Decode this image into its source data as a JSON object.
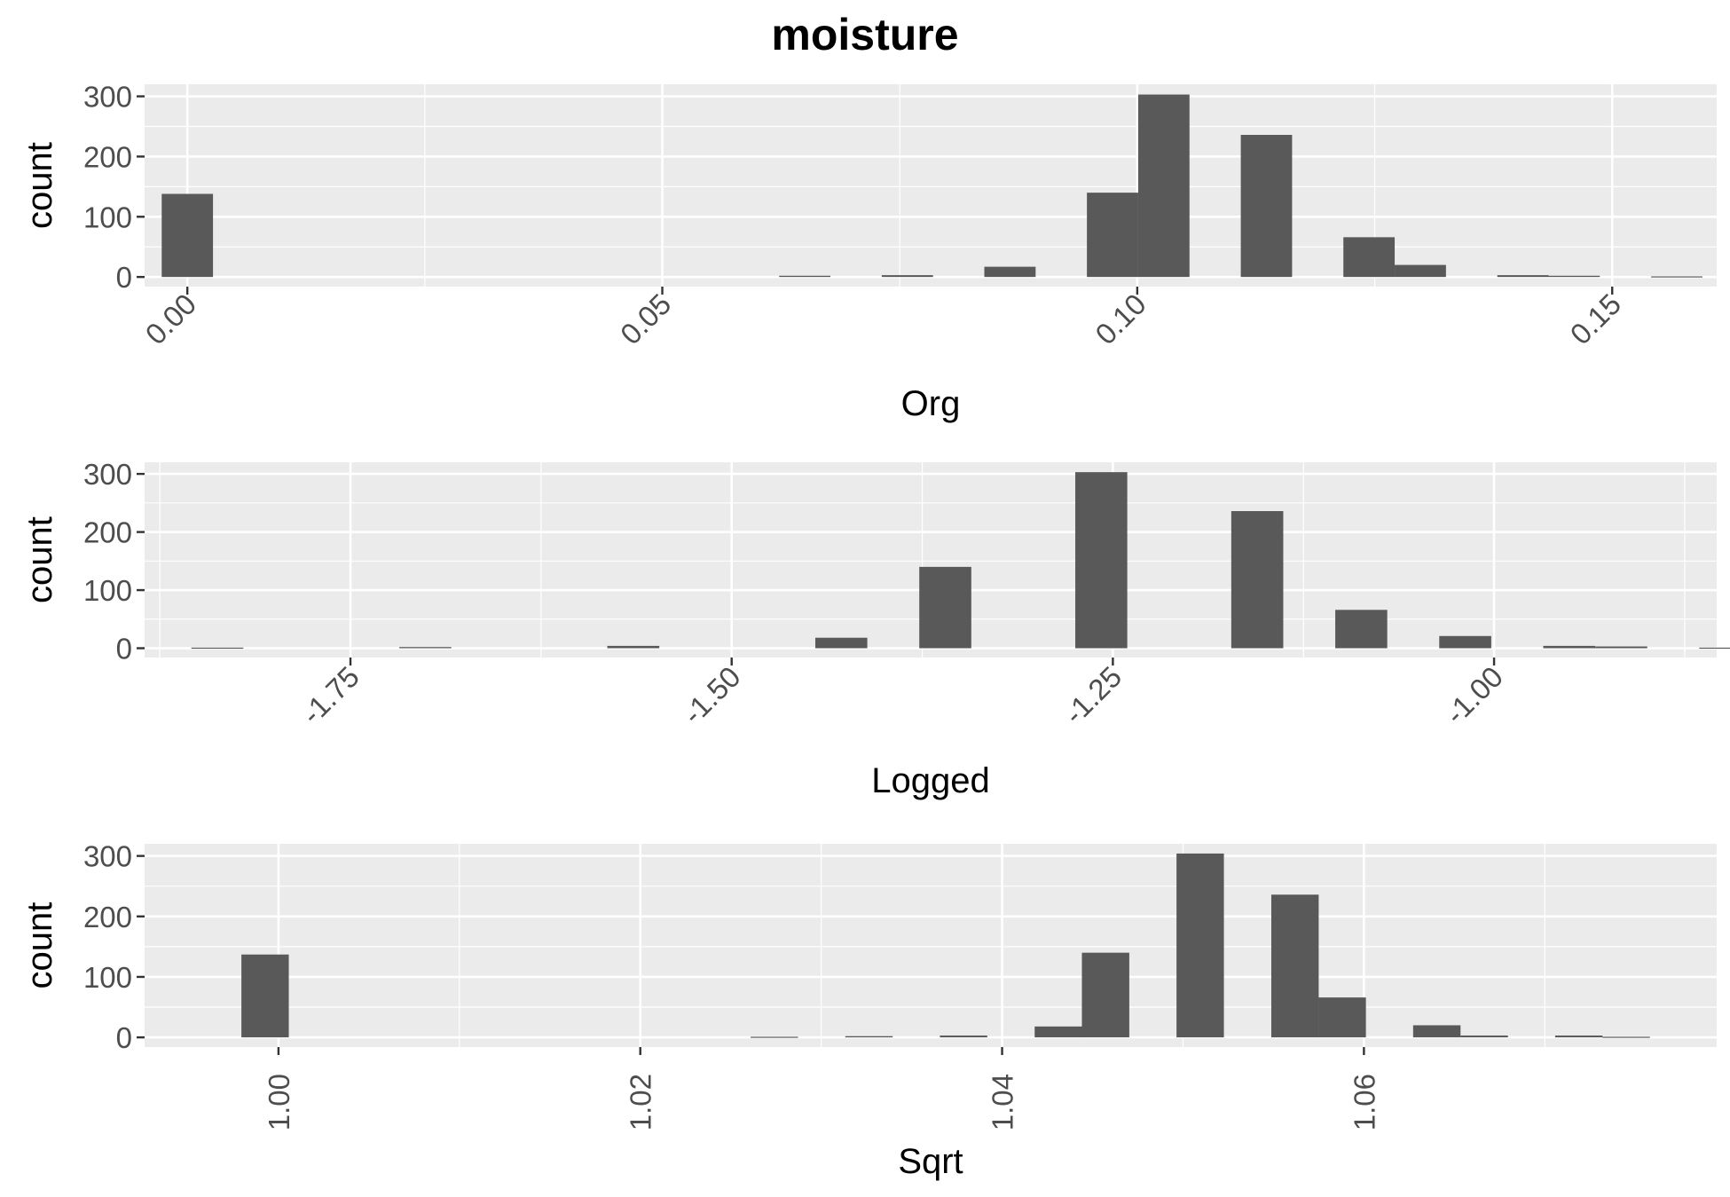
{
  "figure": {
    "title": "moisture"
  },
  "chart_data": [
    {
      "type": "bar",
      "xlabel": "Org",
      "ylabel": "count",
      "xlim": [
        -0.0045,
        0.161
      ],
      "ylim": [
        -16,
        320
      ],
      "x_ticks": [
        0.0,
        0.05,
        0.1,
        0.15
      ],
      "x_tick_labels": [
        "0.00",
        "0.05",
        "0.10",
        "0.15"
      ],
      "x_tick_rotation": -45,
      "y_ticks": [
        0,
        100,
        200,
        300
      ],
      "y_tick_labels": [
        "0",
        "100",
        "200",
        "300"
      ],
      "bin_width": 0.0054,
      "bins": [
        {
          "x": 0.0,
          "count": 138
        },
        {
          "x": 0.065,
          "count": 2
        },
        {
          "x": 0.0758,
          "count": 3
        },
        {
          "x": 0.0866,
          "count": 17
        },
        {
          "x": 0.0974,
          "count": 140
        },
        {
          "x": 0.1028,
          "count": 303
        },
        {
          "x": 0.1136,
          "count": 236
        },
        {
          "x": 0.1244,
          "count": 66
        },
        {
          "x": 0.1298,
          "count": 20
        },
        {
          "x": 0.1406,
          "count": 3
        },
        {
          "x": 0.146,
          "count": 2
        },
        {
          "x": 0.1568,
          "count": 1
        }
      ],
      "grid": true
    },
    {
      "type": "bar",
      "xlabel": "Logged",
      "ylabel": "count",
      "xlim": [
        -1.885,
        -0.854
      ],
      "ylim": [
        -16,
        320
      ],
      "x_ticks": [
        -1.75,
        -1.5,
        -1.25,
        -1.0
      ],
      "x_tick_labels": [
        "-1.75",
        "-1.50",
        "-1.25",
        "-1.00"
      ],
      "x_tick_rotation": -45,
      "y_ticks": [
        0,
        100,
        200,
        300
      ],
      "y_tick_labels": [
        "0",
        "100",
        "200",
        "300"
      ],
      "bin_width": 0.0341,
      "bins": [
        {
          "x": -1.8373,
          "count": 1
        },
        {
          "x": -1.7009,
          "count": 2
        },
        {
          "x": -1.5645,
          "count": 4
        },
        {
          "x": -1.4281,
          "count": 18
        },
        {
          "x": -1.3599,
          "count": 140
        },
        {
          "x": -1.2576,
          "count": 303
        },
        {
          "x": -1.1553,
          "count": 236
        },
        {
          "x": -1.0871,
          "count": 66
        },
        {
          "x": -1.0189,
          "count": 21
        },
        {
          "x": -0.9507,
          "count": 4
        },
        {
          "x": -0.9166,
          "count": 3
        },
        {
          "x": -0.8484,
          "count": 1
        }
      ],
      "grid": true
    },
    {
      "type": "bar",
      "xlabel": "Sqrt",
      "ylabel": "count",
      "xlim": [
        0.9926,
        1.0795
      ],
      "ylim": [
        -16,
        320
      ],
      "x_ticks": [
        1.0,
        1.02,
        1.04,
        1.06
      ],
      "x_tick_labels": [
        "1.00",
        "1.02",
        "1.04",
        "1.06"
      ],
      "x_tick_rotation": -90,
      "y_ticks": [
        0,
        100,
        200,
        300
      ],
      "y_tick_labels": [
        "0",
        "100",
        "200",
        "300"
      ],
      "bin_width": 0.00262,
      "bins": [
        {
          "x": 0.99926,
          "count": 137
        },
        {
          "x": 1.02741,
          "count": 1
        },
        {
          "x": 1.03264,
          "count": 2
        },
        {
          "x": 1.03787,
          "count": 3
        },
        {
          "x": 1.04311,
          "count": 18
        },
        {
          "x": 1.04572,
          "count": 140
        },
        {
          "x": 1.05095,
          "count": 304
        },
        {
          "x": 1.05619,
          "count": 236
        },
        {
          "x": 1.0588,
          "count": 66
        },
        {
          "x": 1.06403,
          "count": 20
        },
        {
          "x": 1.06665,
          "count": 3
        },
        {
          "x": 1.07188,
          "count": 3
        },
        {
          "x": 1.0745,
          "count": 1
        }
      ],
      "grid": true
    }
  ]
}
